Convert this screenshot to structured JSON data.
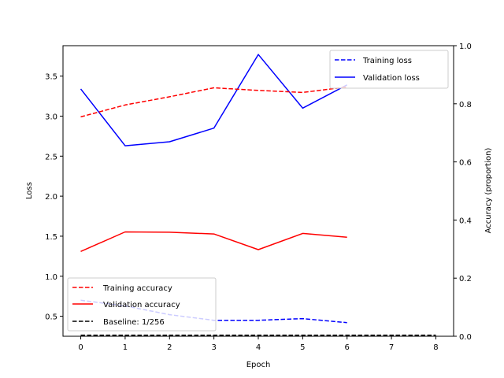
{
  "chart_data": {
    "type": "line",
    "x_label": "Epoch",
    "y_label_left": "Loss",
    "y_label_right": "Accuracy (proportion)",
    "x_ticks": [
      "0",
      "1",
      "2",
      "3",
      "4",
      "5",
      "6",
      "7",
      "8"
    ],
    "y_ticks_left": [
      "0.5",
      "1.0",
      "1.5",
      "2.0",
      "2.5",
      "3.0",
      "3.5"
    ],
    "y_ticks_right": [
      "0.0",
      "0.2",
      "0.4",
      "0.6",
      "0.8",
      "1.0"
    ],
    "xlim": [
      -0.4,
      8.4
    ],
    "ylim_left": [
      0.25,
      3.88
    ],
    "ylim_right": [
      0.0,
      1.0
    ],
    "grid": false,
    "legend_loss_position": "upper right",
    "legend_acc_position": "lower left",
    "series": [
      {
        "name": "Training loss",
        "axis": "left",
        "style": "dashed",
        "color": "#0000ff",
        "x": [
          0,
          1,
          2,
          3,
          4,
          5,
          6
        ],
        "values": [
          0.7,
          0.63,
          0.52,
          0.45,
          0.45,
          0.47,
          0.42
        ]
      },
      {
        "name": "Validation loss",
        "axis": "left",
        "style": "solid",
        "color": "#0000ff",
        "x": [
          0,
          1,
          2,
          3,
          4,
          5,
          6
        ],
        "values": [
          3.34,
          2.63,
          2.68,
          2.85,
          3.77,
          3.1,
          3.39
        ]
      },
      {
        "name": "Training accuracy",
        "axis": "right",
        "style": "dashed",
        "color": "#ff0000",
        "x": [
          0,
          1,
          2,
          3,
          4,
          5,
          6
        ],
        "values": [
          0.755,
          0.796,
          0.824,
          0.855,
          0.846,
          0.839,
          0.858
        ]
      },
      {
        "name": "Validation accuracy",
        "axis": "right",
        "style": "solid",
        "color": "#ff0000",
        "x": [
          0,
          1,
          2,
          3,
          4,
          5,
          6
        ],
        "values": [
          0.292,
          0.359,
          0.358,
          0.352,
          0.298,
          0.354,
          0.341
        ]
      },
      {
        "name": "Baseline: 1/256",
        "axis": "right",
        "style": "dashed",
        "color": "#000000",
        "x": [
          0,
          8
        ],
        "values": [
          0.0039,
          0.0039
        ]
      }
    ]
  }
}
